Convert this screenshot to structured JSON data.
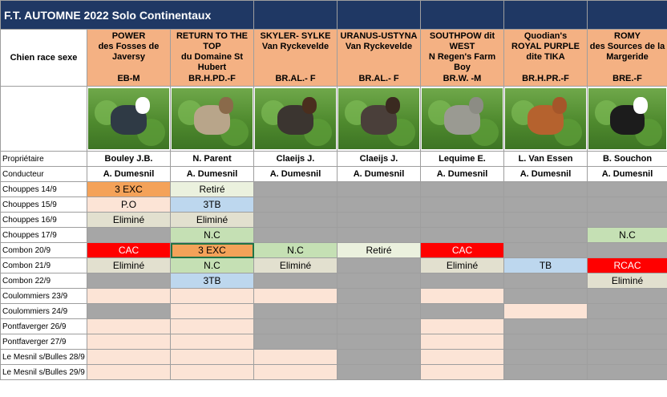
{
  "title": "F.T. AUTOMNE 2022 Solo Continentaux",
  "header_label": "Chien race sexe",
  "dogs": [
    {
      "lines": [
        "POWER",
        "des Fosses de",
        "Javersy"
      ],
      "code": "EB-M",
      "owner": "Bouley J.B.",
      "handler": "A. Dumesnil",
      "coat": "#2f3a45",
      "headcoat": "#ffffff"
    },
    {
      "lines": [
        "RETURN TO THE",
        "TOP",
        "du Domaine St",
        "Hubert"
      ],
      "code": "BR.H.PD.-F",
      "owner": "N. Parent",
      "handler": "A. Dumesnil",
      "coat": "#b8a58a",
      "headcoat": "#8a6a4a"
    },
    {
      "lines": [
        "SKYLER- SYLKE",
        "Van Ryckevelde"
      ],
      "code": "BR.AL.- F",
      "owner": "Claeijs J.",
      "handler": "A. Dumesnil",
      "coat": "#3b3530",
      "headcoat": "#4a2e1e"
    },
    {
      "lines": [
        "URANUS-USTYNA",
        "Van Ryckevelde"
      ],
      "code": "BR.AL.- F",
      "owner": "Claeijs J.",
      "handler": "A. Dumesnil",
      "coat": "#4a3f3a",
      "headcoat": "#3a2a20"
    },
    {
      "lines": [
        "SOUTHPOW dit",
        "WEST",
        "N Regen's Farm",
        "Boy"
      ],
      "code": "BR.W. -M",
      "owner": "Lequime E.",
      "handler": "A. Dumesnil",
      "coat": "#9a9a92",
      "headcoat": "#8c8c84"
    },
    {
      "lines": [
        "Quodian's",
        "ROYAL PURPLE",
        "dite TIKA"
      ],
      "code": "BR.H.PR.-F",
      "owner": "L. Van Essen",
      "handler": "A. Dumesnil",
      "coat": "#b5622e",
      "headcoat": "#a5562a"
    },
    {
      "lines": [
        "ROMY",
        "des Sources de la",
        "Margeride"
      ],
      "code": "BRE.-F",
      "owner": "B. Souchon",
      "handler": "A. Dumesnil",
      "coat": "#1c1c1c",
      "headcoat": "#ffffff"
    }
  ],
  "info_rows": [
    {
      "label": "Propriétaire",
      "field": "owner"
    },
    {
      "label": "Conducteur",
      "field": "handler"
    }
  ],
  "colors": {
    "orange": "#f4b183",
    "peach": "#fce4d6",
    "gray": "#a6a6a6",
    "red": "#ff0000",
    "green": "#c5e0b4",
    "beige": "#e2e0cf",
    "blue": "#bdd7ee",
    "lightgreen": "#ebf1de",
    "deeporange": "#f4a259",
    "white": "#ffffff"
  },
  "trials": [
    {
      "label": "Chouppes 14/9",
      "cells": [
        {
          "t": "3 EXC",
          "c": "deeporange"
        },
        {
          "t": "Retiré",
          "c": "lightgreen"
        },
        {
          "t": "",
          "c": "gray"
        },
        {
          "t": "",
          "c": "gray"
        },
        {
          "t": "",
          "c": "gray"
        },
        {
          "t": "",
          "c": "gray"
        },
        {
          "t": "",
          "c": "gray"
        }
      ]
    },
    {
      "label": "Chouppes 15/9",
      "cells": [
        {
          "t": "P.O",
          "c": "peach"
        },
        {
          "t": "3TB",
          "c": "blue"
        },
        {
          "t": "",
          "c": "gray"
        },
        {
          "t": "",
          "c": "gray"
        },
        {
          "t": "",
          "c": "gray"
        },
        {
          "t": "",
          "c": "gray"
        },
        {
          "t": "",
          "c": "gray"
        }
      ]
    },
    {
      "label": "Chouppes 16/9",
      "cells": [
        {
          "t": "Eliminé",
          "c": "beige"
        },
        {
          "t": "Eliminé",
          "c": "beige"
        },
        {
          "t": "",
          "c": "gray"
        },
        {
          "t": "",
          "c": "gray"
        },
        {
          "t": "",
          "c": "gray"
        },
        {
          "t": "",
          "c": "gray"
        },
        {
          "t": "",
          "c": "gray"
        }
      ]
    },
    {
      "label": "Chouppes 17/9",
      "cells": [
        {
          "t": "",
          "c": "gray"
        },
        {
          "t": "N.C",
          "c": "green"
        },
        {
          "t": "",
          "c": "gray"
        },
        {
          "t": "",
          "c": "gray"
        },
        {
          "t": "",
          "c": "gray"
        },
        {
          "t": "",
          "c": "gray"
        },
        {
          "t": "N.C",
          "c": "green"
        }
      ]
    },
    {
      "label": "Combon 20/9",
      "cells": [
        {
          "t": "CAC",
          "c": "red"
        },
        {
          "t": "3 EXC",
          "c": "deeporange",
          "sel": true
        },
        {
          "t": "N.C",
          "c": "green"
        },
        {
          "t": "Retiré",
          "c": "lightgreen"
        },
        {
          "t": "CAC",
          "c": "red"
        },
        {
          "t": "",
          "c": "gray"
        },
        {
          "t": "",
          "c": "gray"
        }
      ]
    },
    {
      "label": "Combon 21/9",
      "cells": [
        {
          "t": "Eliminé",
          "c": "beige"
        },
        {
          "t": "N.C",
          "c": "green"
        },
        {
          "t": "Eliminé",
          "c": "beige"
        },
        {
          "t": "",
          "c": "gray"
        },
        {
          "t": "Eliminé",
          "c": "beige"
        },
        {
          "t": "TB",
          "c": "blue"
        },
        {
          "t": "RCAC",
          "c": "red"
        }
      ]
    },
    {
      "label": "Combon 22/9",
      "cells": [
        {
          "t": "",
          "c": "gray"
        },
        {
          "t": "3TB",
          "c": "blue"
        },
        {
          "t": "",
          "c": "gray"
        },
        {
          "t": "",
          "c": "gray"
        },
        {
          "t": "",
          "c": "gray"
        },
        {
          "t": "",
          "c": "gray"
        },
        {
          "t": "Eliminé",
          "c": "beige"
        }
      ]
    },
    {
      "label": "Coulommiers 23/9",
      "cells": [
        {
          "t": "",
          "c": "peach"
        },
        {
          "t": "",
          "c": "peach"
        },
        {
          "t": "",
          "c": "peach"
        },
        {
          "t": "",
          "c": "gray"
        },
        {
          "t": "",
          "c": "peach"
        },
        {
          "t": "",
          "c": "gray"
        },
        {
          "t": "",
          "c": "gray"
        }
      ]
    },
    {
      "label": "Coulommiers 24/9",
      "cells": [
        {
          "t": "",
          "c": "gray"
        },
        {
          "t": "",
          "c": "peach"
        },
        {
          "t": "",
          "c": "gray"
        },
        {
          "t": "",
          "c": "gray"
        },
        {
          "t": "",
          "c": "gray"
        },
        {
          "t": "",
          "c": "peach"
        },
        {
          "t": "",
          "c": "gray"
        }
      ]
    },
    {
      "label": "Pontfaverger 26/9",
      "cells": [
        {
          "t": "",
          "c": "peach"
        },
        {
          "t": "",
          "c": "peach"
        },
        {
          "t": "",
          "c": "gray"
        },
        {
          "t": "",
          "c": "gray"
        },
        {
          "t": "",
          "c": "peach"
        },
        {
          "t": "",
          "c": "gray"
        },
        {
          "t": "",
          "c": "gray"
        }
      ]
    },
    {
      "label": "Pontfaverger 27/9",
      "cells": [
        {
          "t": "",
          "c": "peach"
        },
        {
          "t": "",
          "c": "peach"
        },
        {
          "t": "",
          "c": "gray"
        },
        {
          "t": "",
          "c": "gray"
        },
        {
          "t": "",
          "c": "peach"
        },
        {
          "t": "",
          "c": "gray"
        },
        {
          "t": "",
          "c": "gray"
        }
      ]
    },
    {
      "label": "Le Mesnil s/Bulles 28/9",
      "cells": [
        {
          "t": "",
          "c": "peach"
        },
        {
          "t": "",
          "c": "peach"
        },
        {
          "t": "",
          "c": "peach"
        },
        {
          "t": "",
          "c": "gray"
        },
        {
          "t": "",
          "c": "peach"
        },
        {
          "t": "",
          "c": "gray"
        },
        {
          "t": "",
          "c": "gray"
        }
      ]
    },
    {
      "label": "Le Mesnil s/Bulles 29/9",
      "cells": [
        {
          "t": "",
          "c": "peach"
        },
        {
          "t": "",
          "c": "peach"
        },
        {
          "t": "",
          "c": "peach"
        },
        {
          "t": "",
          "c": "gray"
        },
        {
          "t": "",
          "c": "peach"
        },
        {
          "t": "",
          "c": "gray"
        },
        {
          "t": "",
          "c": "gray"
        }
      ]
    }
  ]
}
